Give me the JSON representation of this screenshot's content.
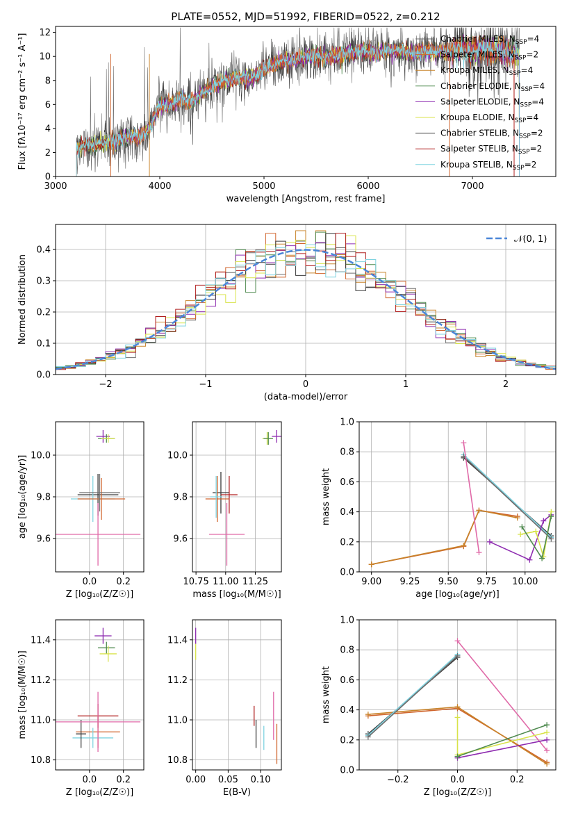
{
  "figure_title": "PLATE=0552, MJD=51992, FIBERID=0522, z=0.212",
  "colors": {
    "chabrier_miles": "#6e6e6e",
    "salpeter_miles": "#d0652d",
    "kroupa_miles": "#c8832a",
    "chabrier_elodie": "#4f8a4f",
    "salpeter_elodie": "#8e2cb0",
    "kroupa_elodie": "#d8e34a",
    "chabrier_stelib": "#3a3a3a",
    "salpeter_stelib": "#b01e1e",
    "kroupa_stelib": "#7fd3e0",
    "gaussian": "#4a86d8",
    "pink": "#e06aa8"
  },
  "chart_data": [
    {
      "id": "spectrum",
      "type": "line",
      "title": "",
      "xlabel": "wavelength [Angstrom, rest frame]",
      "ylabel": "Flux [fλ10⁻¹⁷ erg cm⁻² s⁻¹ A⁻¹]",
      "xlim": [
        3000,
        7800
      ],
      "ylim": [
        0,
        12.5
      ],
      "xticks": [
        "3000",
        "4000",
        "5000",
        "6000",
        "7000"
      ],
      "yticks": [
        "0",
        "2",
        "4",
        "6",
        "8",
        "10",
        "12"
      ],
      "legend_position": "top-right",
      "legend": [
        {
          "label": "Chabrier MILES, N",
          "sub": "SSP",
          "suffix": "=4",
          "color": "#6e6e6e"
        },
        {
          "label": "Salpeter MILES, N",
          "sub": "SSP",
          "suffix": "=2",
          "color": "#d0652d"
        },
        {
          "label": "Kroupa MILES, N",
          "sub": "SSP",
          "suffix": "=4",
          "color": "#c8832a"
        },
        {
          "label": "Chabrier ELODIE, N",
          "sub": "SSP",
          "suffix": "=4",
          "color": "#4f8a4f"
        },
        {
          "label": "Salpeter ELODIE, N",
          "sub": "SSP",
          "suffix": "=4",
          "color": "#8e2cb0"
        },
        {
          "label": "Kroupa ELODIE, N",
          "sub": "SSP",
          "suffix": "=4",
          "color": "#d8e34a"
        },
        {
          "label": "Chabrier STELIB, N",
          "sub": "SSP",
          "suffix": "=2",
          "color": "#3a3a3a"
        },
        {
          "label": "Salpeter STELIB, N",
          "sub": "SSP",
          "suffix": "=2",
          "color": "#b01e1e"
        },
        {
          "label": "Kroupa STELIB, N",
          "sub": "SSP",
          "suffix": "=2",
          "color": "#7fd3e0"
        }
      ],
      "envelope": {
        "x": [
          3200,
          3300,
          3400,
          3500,
          3600,
          3700,
          3800,
          3900,
          4000,
          4100,
          4200,
          4300,
          4400,
          4500,
          4600,
          4700,
          4800,
          4900,
          5000,
          5100,
          5200,
          5300,
          5400,
          5500,
          5600,
          5700,
          5800,
          5900,
          6000,
          6100,
          6200,
          6300,
          6400,
          6500,
          6600,
          6700,
          6800,
          6900,
          7000,
          7100,
          7200,
          7300,
          7400
        ],
        "y": [
          2.3,
          2.6,
          2.7,
          2.8,
          3.0,
          3.4,
          3.3,
          3.9,
          5.9,
          6.0,
          6.5,
          6.2,
          7.0,
          7.4,
          7.9,
          8.1,
          8.3,
          8.2,
          9.0,
          9.4,
          9.6,
          9.7,
          10.0,
          10.1,
          10.0,
          10.1,
          10.3,
          10.3,
          10.4,
          10.3,
          10.5,
          10.5,
          10.3,
          10.4,
          10.5,
          10.4,
          10.4,
          10.6,
          10.5,
          10.6,
          10.5,
          10.4,
          10.2
        ]
      }
    },
    {
      "id": "residuals",
      "type": "histogram",
      "xlabel": "(data-model)/error",
      "ylabel": "Normed distribution",
      "xlim": [
        -2.5,
        2.5
      ],
      "ylim": [
        0,
        0.48
      ],
      "xticks": [
        "−2",
        "−1",
        "0",
        "1",
        "2"
      ],
      "yticks": [
        "0.0",
        "0.1",
        "0.2",
        "0.3",
        "0.4"
      ],
      "grid": true,
      "legend": "𝒩(0, 1)",
      "legend_position": "top-right",
      "bin_width": 0.1
    },
    {
      "id": "z-age",
      "type": "errorbar",
      "xlabel": "Z [log₁₀(Z/Z☉)]",
      "ylabel": "age  [log₁₀(age/yr)]",
      "xlim": [
        -0.2,
        0.32
      ],
      "ylim": [
        9.44,
        10.16
      ],
      "xticks": [
        "0.0",
        "0.2"
      ],
      "yticks": [
        "9.6",
        "9.8",
        "10.0"
      ],
      "grid": true,
      "points": [
        {
          "x": 0.08,
          "y": 10.09,
          "xerr": 0.04,
          "yerr": 0.03,
          "color": "#8e2cb0"
        },
        {
          "x": 0.1,
          "y": 10.08,
          "xerr": 0.05,
          "yerr": 0.02,
          "color": "#4f8a4f"
        },
        {
          "x": 0.11,
          "y": 10.08,
          "xerr": 0.04,
          "yerr": 0.02,
          "color": "#d8e34a"
        },
        {
          "x": 0.05,
          "y": 9.81,
          "xerr": 0.12,
          "yerr": 0.1,
          "color": "#3a3a3a"
        },
        {
          "x": 0.02,
          "y": 9.79,
          "xerr": 0.13,
          "yerr": 0.11,
          "color": "#7fd3e0"
        },
        {
          "x": 0.07,
          "y": 9.79,
          "xerr": 0.14,
          "yerr": 0.1,
          "color": "#d0652d"
        },
        {
          "x": 0.06,
          "y": 9.82,
          "xerr": 0.12,
          "yerr": 0.09,
          "color": "#6e6e6e"
        },
        {
          "x": 0.05,
          "y": 9.62,
          "xerr": 0.25,
          "yerr": 0.15,
          "color": "#e06aa8"
        }
      ]
    },
    {
      "id": "mass-age",
      "type": "errorbar",
      "xlabel": "mass [log₁₀(M/M☉)]",
      "ylabel": "",
      "xlim": [
        10.72,
        11.47
      ],
      "ylim": [
        9.44,
        10.16
      ],
      "xticks": [
        "10.75",
        "11.00",
        "11.25"
      ],
      "yticks": [
        "9.6",
        "9.8",
        "10.0"
      ],
      "grid": true,
      "points": [
        {
          "x": 11.35,
          "y": 10.08,
          "xerr": 0.04,
          "yerr": 0.03,
          "color": "#d8e34a"
        },
        {
          "x": 11.36,
          "y": 10.08,
          "xerr": 0.04,
          "yerr": 0.03,
          "color": "#4f8a4f"
        },
        {
          "x": 11.43,
          "y": 10.09,
          "xerr": 0.04,
          "yerr": 0.03,
          "color": "#8e2cb0"
        },
        {
          "x": 10.96,
          "y": 9.82,
          "xerr": 0.07,
          "yerr": 0.1,
          "color": "#3a3a3a"
        },
        {
          "x": 10.93,
          "y": 9.79,
          "xerr": 0.1,
          "yerr": 0.11,
          "color": "#d0652d"
        },
        {
          "x": 10.92,
          "y": 9.8,
          "xerr": 0.05,
          "yerr": 0.1,
          "color": "#7fd3e0"
        },
        {
          "x": 11.03,
          "y": 9.81,
          "xerr": 0.07,
          "yerr": 0.09,
          "color": "#b01e1e"
        },
        {
          "x": 11.01,
          "y": 9.62,
          "xerr": 0.15,
          "yerr": 0.15,
          "color": "#e06aa8"
        }
      ]
    },
    {
      "id": "age-weight",
      "type": "line",
      "xlabel": "age  [log₁₀(age/yr)]",
      "ylabel": "mass weight",
      "xlim": [
        8.92,
        10.2
      ],
      "ylim": [
        0,
        1.0
      ],
      "xticks": [
        "9.00",
        "9.25",
        "9.50",
        "9.75",
        "10.00"
      ],
      "yticks": [
        "0.0",
        "0.2",
        "0.4",
        "0.6",
        "0.8",
        "1.0"
      ],
      "grid": true,
      "series": [
        {
          "color": "#d0652d",
          "x": [
            9.0,
            9.6,
            9.7,
            9.95
          ],
          "y": [
            0.05,
            0.17,
            0.41,
            0.37
          ]
        },
        {
          "color": "#c8832a",
          "x": [
            9.0,
            9.6,
            9.7,
            9.95
          ],
          "y": [
            0.05,
            0.175,
            0.41,
            0.36
          ]
        },
        {
          "color": "#3a3a3a",
          "x": [
            9.6,
            10.17
          ],
          "y": [
            0.76,
            0.24
          ]
        },
        {
          "color": "#7fd3e0",
          "x": [
            9.6,
            10.17
          ],
          "y": [
            0.78,
            0.23
          ]
        },
        {
          "color": "#6e6e6e",
          "x": [
            9.6,
            10.17
          ],
          "y": [
            0.77,
            0.22
          ]
        },
        {
          "color": "#e06aa8",
          "x": [
            9.6,
            9.7
          ],
          "y": [
            0.86,
            0.13
          ]
        },
        {
          "color": "#8e2cb0",
          "x": [
            9.77,
            10.03,
            10.12,
            10.17
          ],
          "y": [
            0.2,
            0.08,
            0.34,
            0.38
          ]
        },
        {
          "color": "#d8e34a",
          "x": [
            9.97,
            10.07,
            10.12,
            10.17
          ],
          "y": [
            0.25,
            0.27,
            0.1,
            0.4
          ]
        },
        {
          "color": "#4f8a4f",
          "x": [
            9.98,
            10.11,
            10.17
          ],
          "y": [
            0.3,
            0.09,
            0.37
          ]
        }
      ]
    },
    {
      "id": "z-mass",
      "type": "errorbar",
      "xlabel": "Z [log₁₀(Z/Z☉)]",
      "ylabel": "mass [log₁₀(M/M☉)]",
      "xlim": [
        -0.2,
        0.32
      ],
      "ylim": [
        10.75,
        11.5
      ],
      "xticks": [
        "0.0",
        "0.2"
      ],
      "yticks": [
        "10.8",
        "11.0",
        "11.2",
        "11.4"
      ],
      "grid": true,
      "points": [
        {
          "x": 0.08,
          "y": 11.42,
          "xerr": 0.05,
          "yerr": 0.04,
          "color": "#8e2cb0"
        },
        {
          "x": 0.1,
          "y": 11.36,
          "xerr": 0.05,
          "yerr": 0.03,
          "color": "#4f8a4f"
        },
        {
          "x": 0.11,
          "y": 11.33,
          "xerr": 0.05,
          "yerr": 0.04,
          "color": "#d8e34a"
        },
        {
          "x": 0.05,
          "y": 11.02,
          "xerr": 0.12,
          "yerr": 0.06,
          "color": "#b01e1e"
        },
        {
          "x": 0.05,
          "y": 10.94,
          "xerr": 0.13,
          "yerr": 0.08,
          "color": "#d0652d"
        },
        {
          "x": 0.02,
          "y": 10.91,
          "xerr": 0.12,
          "yerr": 0.05,
          "color": "#7fd3e0"
        },
        {
          "x": -0.05,
          "y": 10.93,
          "xerr": 0.03,
          "yerr": 0.07,
          "color": "#3a3a3a"
        },
        {
          "x": 0.05,
          "y": 10.99,
          "xerr": 0.25,
          "yerr": 0.15,
          "color": "#e06aa8"
        }
      ]
    },
    {
      "id": "ebv-mass",
      "type": "errorbar",
      "xlabel": "E(B-V)",
      "ylabel": "",
      "xlim": [
        -0.005,
        0.132
      ],
      "ylim": [
        10.75,
        11.5
      ],
      "xticks": [
        "0.00",
        "0.05",
        "0.10"
      ],
      "yticks": [
        "10.8",
        "11.0",
        "11.2",
        "11.4"
      ],
      "grid": true,
      "points": [
        {
          "x": 0.0,
          "y": 11.42,
          "xerr": 0,
          "yerr": 0.04,
          "color": "#8e2cb0"
        },
        {
          "x": 0.0,
          "y": 11.34,
          "xerr": 0,
          "yerr": 0.04,
          "color": "#d8e34a"
        },
        {
          "x": 0.09,
          "y": 11.02,
          "xerr": 0,
          "yerr": 0.05,
          "color": "#b01e1e"
        },
        {
          "x": 0.093,
          "y": 10.93,
          "xerr": 0,
          "yerr": 0.07,
          "color": "#3a3a3a"
        },
        {
          "x": 0.105,
          "y": 10.91,
          "xerr": 0,
          "yerr": 0.06,
          "color": "#7fd3e0"
        },
        {
          "x": 0.12,
          "y": 11.02,
          "xerr": 0,
          "yerr": 0.12,
          "color": "#e06aa8"
        },
        {
          "x": 0.125,
          "y": 10.88,
          "xerr": 0,
          "yerr": 0.1,
          "color": "#d0652d"
        }
      ]
    },
    {
      "id": "z-weight",
      "type": "line",
      "xlabel": "Z [log₁₀(Z/Z☉)]",
      "ylabel": "mass weight",
      "xlim": [
        -0.33,
        0.33
      ],
      "ylim": [
        0,
        1.0
      ],
      "xticks": [
        "−0.2",
        "0.0",
        "0.2"
      ],
      "yticks": [
        "0.0",
        "0.2",
        "0.4",
        "0.6",
        "0.8",
        "1.0"
      ],
      "grid": true,
      "series": [
        {
          "color": "#d0652d",
          "x": [
            -0.3,
            0.0,
            0.3
          ],
          "y": [
            0.36,
            0.41,
            0.05
          ]
        },
        {
          "color": "#c8832a",
          "x": [
            -0.3,
            0.0,
            0.3
          ],
          "y": [
            0.37,
            0.42,
            0.04
          ]
        },
        {
          "color": "#3a3a3a",
          "x": [
            -0.3,
            0.0
          ],
          "y": [
            0.24,
            0.75
          ]
        },
        {
          "color": "#7fd3e0",
          "x": [
            -0.3,
            0.0
          ],
          "y": [
            0.23,
            0.77
          ]
        },
        {
          "color": "#6e6e6e",
          "x": [
            -0.3,
            0.0
          ],
          "y": [
            0.22,
            0.76
          ]
        },
        {
          "color": "#e06aa8",
          "x": [
            0.0,
            0.3
          ],
          "y": [
            0.86,
            0.13
          ]
        },
        {
          "color": "#8e2cb0",
          "x": [
            0.0,
            0.3
          ],
          "y": [
            0.08,
            0.2
          ]
        },
        {
          "color": "#d8e34a",
          "x": [
            0.0,
            0.0,
            0.3
          ],
          "y": [
            0.35,
            0.1,
            0.25
          ]
        },
        {
          "color": "#4f8a4f",
          "x": [
            0.0,
            0.3
          ],
          "y": [
            0.09,
            0.3
          ]
        }
      ]
    }
  ]
}
